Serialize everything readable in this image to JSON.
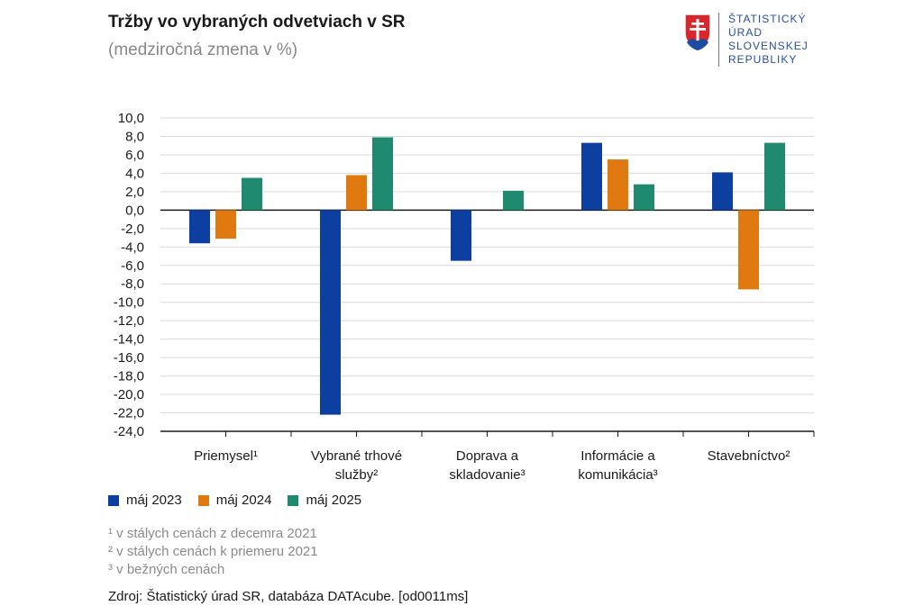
{
  "header": {
    "title": "Tržby vo vybraných odvetviach v SR",
    "subtitle": "(medziročná zmena v %)"
  },
  "logo": {
    "lines": [
      "ŠTATISTICKÝ",
      "ÚRAD",
      "SLOVENSKEJ",
      "REPUBLIKY"
    ],
    "text_color": "#2a4fa0"
  },
  "chart_data": {
    "type": "bar",
    "title": "Tržby vo vybraných odvetviach v SR",
    "subtitle": "(medziročná zmena v %)",
    "xlabel": "",
    "ylabel": "",
    "ylim": [
      -24,
      10
    ],
    "ytick_step": 2,
    "ytick_labels": [
      "10,0",
      "8,0",
      "6,0",
      "4,0",
      "2,0",
      "0,0",
      "-2,0",
      "-4,0",
      "-6,0",
      "-8,0",
      "-10,0",
      "-12,0",
      "-14,0",
      "-16,0",
      "-18,0",
      "-20,0",
      "-22,0",
      "-24,0"
    ],
    "grid": true,
    "legend_position": "bottom-left",
    "categories": [
      [
        "Priemysel¹"
      ],
      [
        "Vybrané trhové",
        "služby²"
      ],
      [
        "Doprava a",
        "skladovanie³"
      ],
      [
        "Informácie a",
        "komunikácia³"
      ],
      [
        "Stavebníctvo²"
      ]
    ],
    "series": [
      {
        "name": "máj 2023",
        "color": "#0d3fa0",
        "values": [
          -3.6,
          -22.2,
          -5.5,
          7.3,
          4.1
        ]
      },
      {
        "name": "máj 2024",
        "color": "#e07a10",
        "values": [
          -3.1,
          3.8,
          0,
          5.5,
          -8.6
        ]
      },
      {
        "name": "máj 2025",
        "color": "#1f8a70",
        "values": [
          3.5,
          7.9,
          2.1,
          2.8,
          7.3
        ]
      }
    ]
  },
  "notes": [
    "¹ v stálych cenách z decemra 2021",
    "² v stálych cenách k priemeru 2021",
    "³ v bežných cenách"
  ],
  "source": "Zdroj: Štatistický úrad SR, databáza DATAcube. [od0011ms]"
}
